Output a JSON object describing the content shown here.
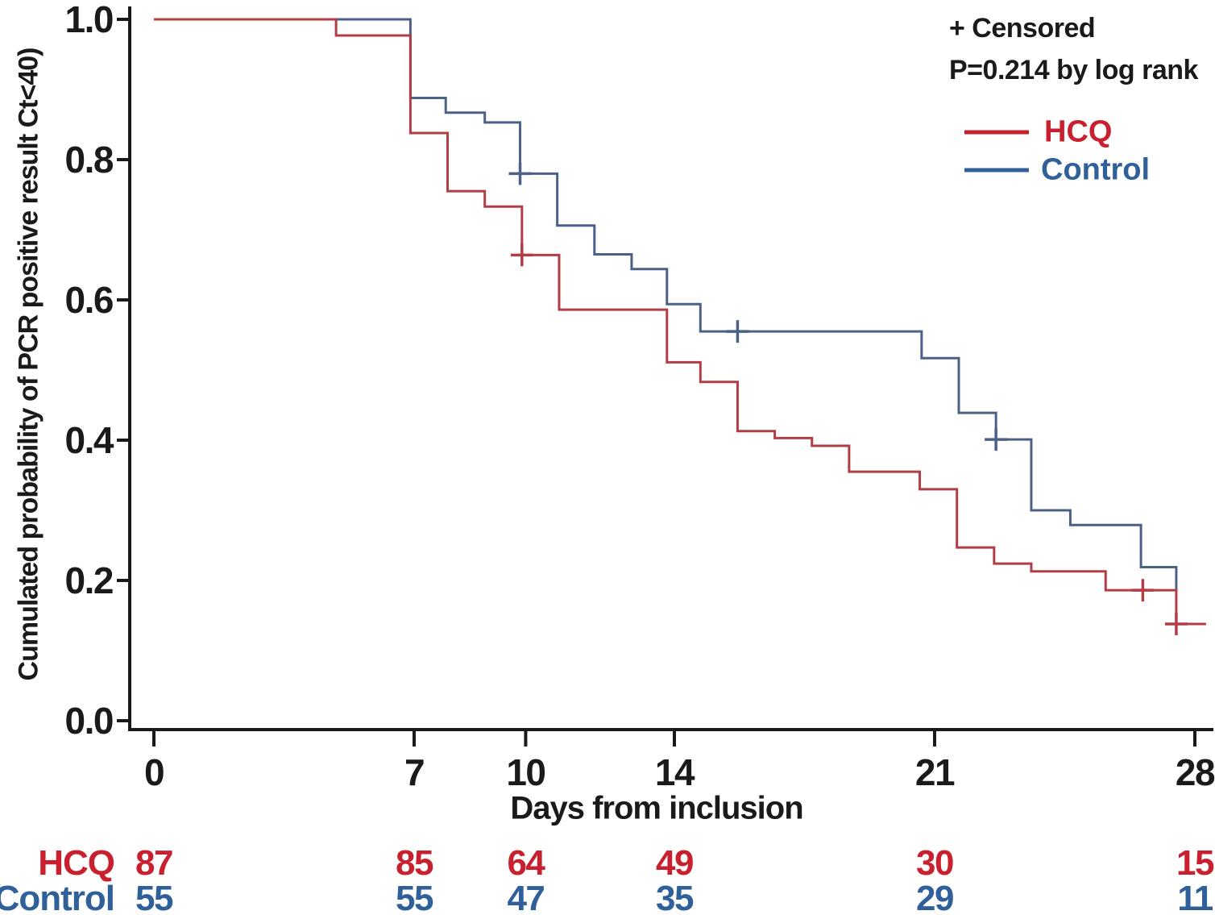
{
  "chart_data": {
    "type": "line",
    "subtype": "kaplan-meier-step-curves",
    "title": "",
    "xlabel": "Days from inclusion",
    "ylabel": "Cumulated probability of PCR positive result Ct<40)",
    "xlim": [
      0,
      28.6
    ],
    "ylim": [
      0.0,
      1.0
    ],
    "x_ticks": [
      0,
      7,
      10,
      14,
      21,
      28
    ],
    "y_ticks": [
      1.0,
      0.8,
      0.6,
      0.4,
      0.2,
      0.0
    ],
    "grid": false,
    "legend_position": "top-right",
    "annotations": [
      "+ Censored",
      "P=0.214 by log rank"
    ],
    "legend": [
      {
        "name": "HCQ",
        "color": "#C8202E"
      },
      {
        "name": "Control",
        "color": "#30609A"
      }
    ],
    "axis_color": "#1a1a1a",
    "series": [
      {
        "name": "Control",
        "color": "#4C6186",
        "points": [
          [
            0,
            1.0
          ],
          [
            6.9,
            1.0
          ],
          [
            6.9,
            0.888
          ],
          [
            7.85,
            0.888
          ],
          [
            7.85,
            0.867
          ],
          [
            8.9,
            0.867
          ],
          [
            8.9,
            0.853
          ],
          [
            9.85,
            0.853
          ],
          [
            9.85,
            0.78
          ],
          [
            10.85,
            0.78
          ],
          [
            10.85,
            0.706
          ],
          [
            11.85,
            0.706
          ],
          [
            11.85,
            0.665
          ],
          [
            12.85,
            0.665
          ],
          [
            12.85,
            0.644
          ],
          [
            13.8,
            0.644
          ],
          [
            13.8,
            0.594
          ],
          [
            14.7,
            0.594
          ],
          [
            14.7,
            0.555
          ],
          [
            20.65,
            0.555
          ],
          [
            20.65,
            0.517
          ],
          [
            21.65,
            0.517
          ],
          [
            21.65,
            0.439
          ],
          [
            22.65,
            0.439
          ],
          [
            22.65,
            0.401
          ],
          [
            23.6,
            0.401
          ],
          [
            23.6,
            0.3
          ],
          [
            24.65,
            0.3
          ],
          [
            24.65,
            0.279
          ],
          [
            26.55,
            0.279
          ],
          [
            26.55,
            0.219
          ],
          [
            27.5,
            0.219
          ],
          [
            27.5,
            0.186
          ]
        ],
        "censored": [
          [
            9.85,
            0.78
          ],
          [
            15.7,
            0.555
          ],
          [
            22.65,
            0.401
          ]
        ]
      },
      {
        "name": "HCQ",
        "color": "#B03E46",
        "points": [
          [
            0,
            1.0
          ],
          [
            4.9,
            1.0
          ],
          [
            4.9,
            0.977
          ],
          [
            6.9,
            0.977
          ],
          [
            6.9,
            0.838
          ],
          [
            7.9,
            0.838
          ],
          [
            7.9,
            0.755
          ],
          [
            8.9,
            0.755
          ],
          [
            8.9,
            0.733
          ],
          [
            9.9,
            0.733
          ],
          [
            9.9,
            0.664
          ],
          [
            10.9,
            0.664
          ],
          [
            10.9,
            0.586
          ],
          [
            13.8,
            0.586
          ],
          [
            13.8,
            0.511
          ],
          [
            14.7,
            0.511
          ],
          [
            14.7,
            0.483
          ],
          [
            15.7,
            0.483
          ],
          [
            15.7,
            0.413
          ],
          [
            16.7,
            0.413
          ],
          [
            16.7,
            0.403
          ],
          [
            17.7,
            0.403
          ],
          [
            17.7,
            0.392
          ],
          [
            18.7,
            0.392
          ],
          [
            18.7,
            0.355
          ],
          [
            20.6,
            0.355
          ],
          [
            20.6,
            0.33
          ],
          [
            21.6,
            0.33
          ],
          [
            21.6,
            0.247
          ],
          [
            22.6,
            0.247
          ],
          [
            22.6,
            0.224
          ],
          [
            23.6,
            0.224
          ],
          [
            23.6,
            0.213
          ],
          [
            25.6,
            0.213
          ],
          [
            25.6,
            0.186
          ],
          [
            27.5,
            0.186
          ],
          [
            27.5,
            0.138
          ],
          [
            28.3,
            0.138
          ]
        ],
        "censored": [
          [
            9.9,
            0.664
          ],
          [
            26.6,
            0.186
          ],
          [
            27.5,
            0.138
          ]
        ]
      }
    ],
    "risk_table": {
      "days": [
        0,
        7,
        10,
        14,
        21,
        28
      ],
      "rows": [
        {
          "name": "HCQ",
          "color": "#C8202E",
          "values": [
            87,
            85,
            64,
            49,
            30,
            15
          ]
        },
        {
          "name": "Control",
          "color": "#30609A",
          "values": [
            55,
            55,
            47,
            35,
            29,
            11
          ]
        }
      ]
    }
  }
}
